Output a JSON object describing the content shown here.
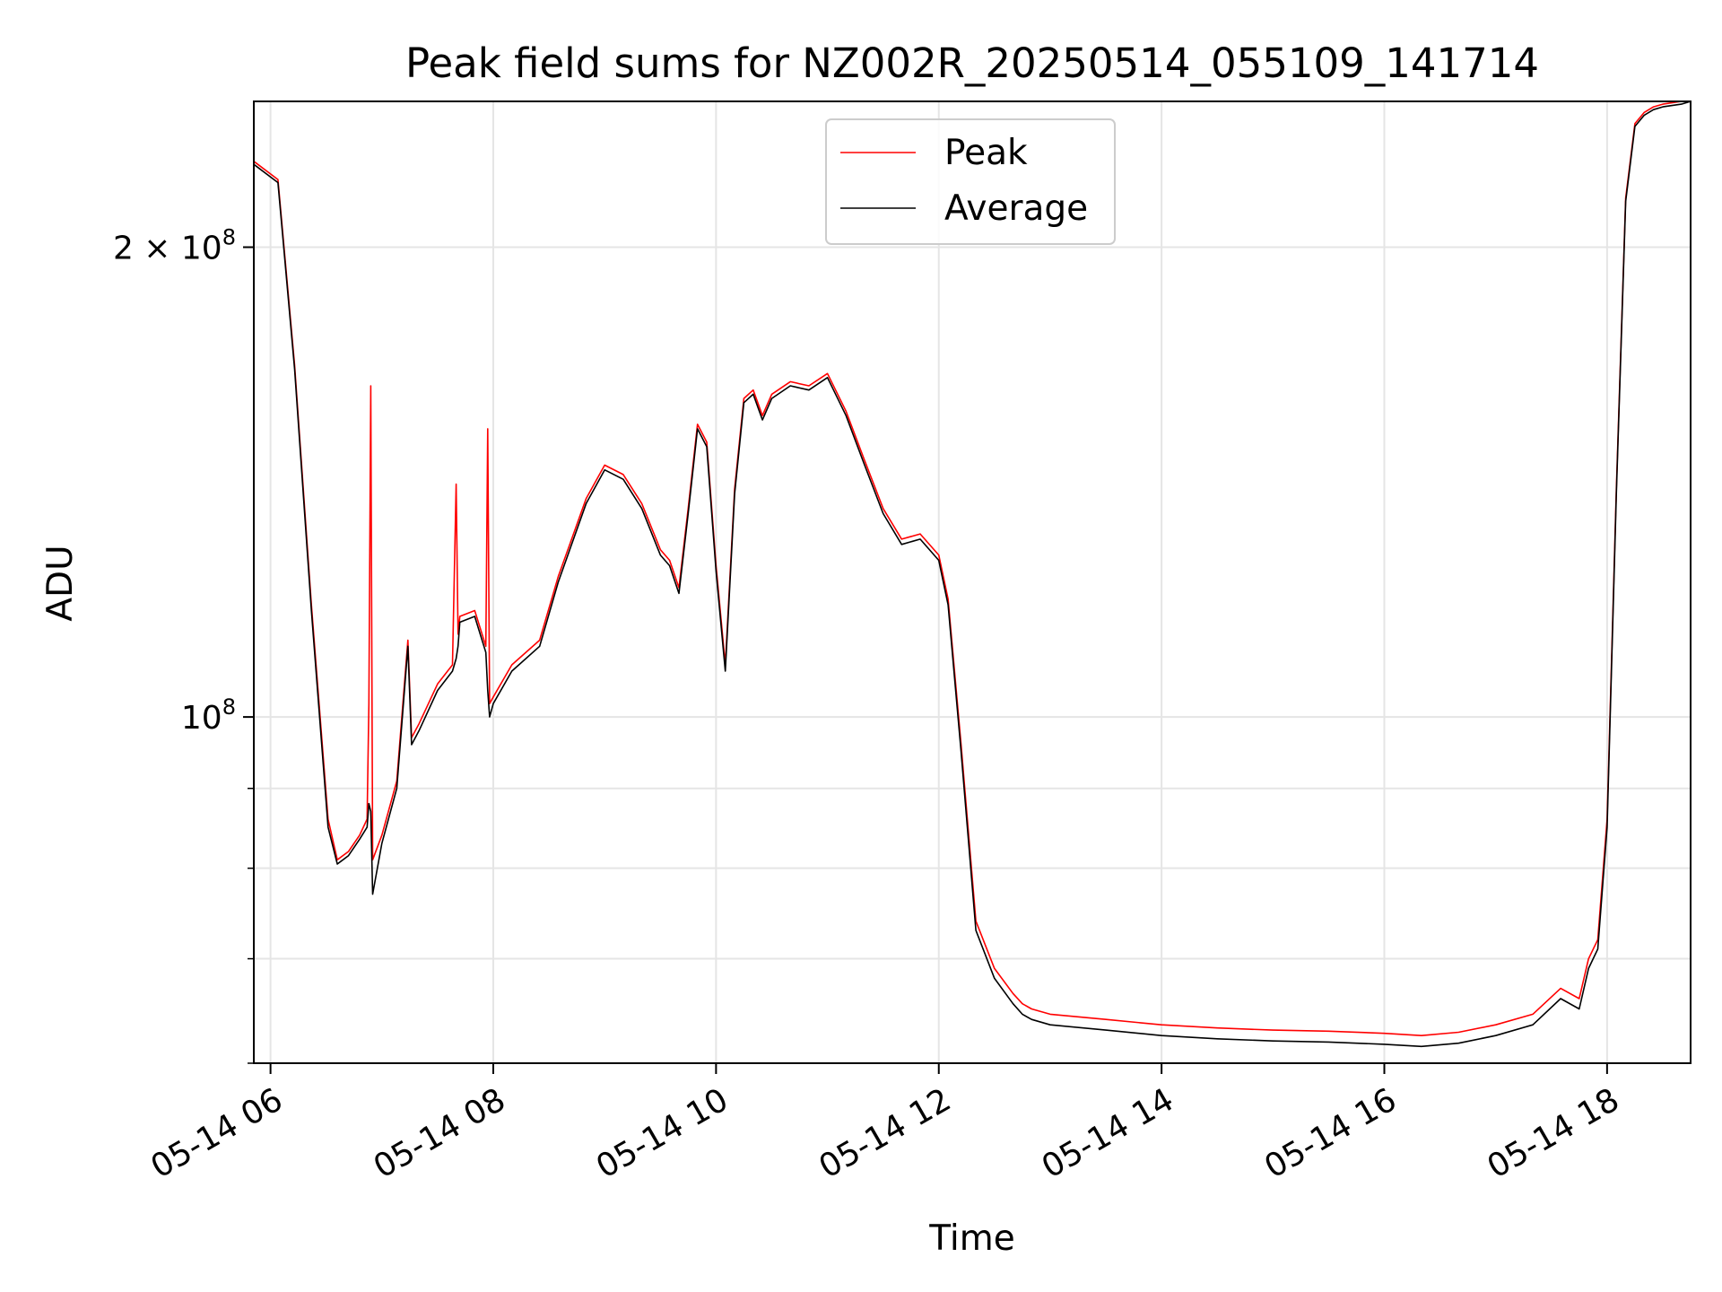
{
  "chart_data": {
    "type": "line",
    "title": "Peak field sums for NZ002R_20250514_055109_141714",
    "xlabel": "Time",
    "ylabel": "ADU",
    "yscale": "log",
    "ylim": [
      60000000,
      248000000
    ],
    "xlim": [
      "2025-05-14 05:51",
      "2025-05-14 18:45"
    ],
    "x_ticks": [
      {
        "t": "2025-05-14 06:00",
        "label": "05-14 06"
      },
      {
        "t": "2025-05-14 08:00",
        "label": "05-14 08"
      },
      {
        "t": "2025-05-14 10:00",
        "label": "05-14 10"
      },
      {
        "t": "2025-05-14 12:00",
        "label": "05-14 12"
      },
      {
        "t": "2025-05-14 14:00",
        "label": "05-14 14"
      },
      {
        "t": "2025-05-14 16:00",
        "label": "05-14 16"
      },
      {
        "t": "2025-05-14 18:00",
        "label": "05-14 18"
      }
    ],
    "y_major_ticks": [
      {
        "value": 100000000,
        "base": "10",
        "exp": "8",
        "mantissa": ""
      },
      {
        "value": 200000000,
        "base": "10",
        "exp": "8",
        "mantissa": "2 × "
      }
    ],
    "y_minor_ticks": [
      60000000,
      70000000,
      80000000,
      90000000
    ],
    "grid": true,
    "legend_position": "upper center",
    "series": [
      {
        "name": "Peak",
        "color": "#ff0000",
        "x": [
          "2025-05-14 05:51",
          "2025-05-14 06:04",
          "2025-05-14 06:13",
          "2025-05-14 06:22",
          "2025-05-14 06:31",
          "2025-05-14 06:36",
          "2025-05-14 06:42",
          "2025-05-14 06:48",
          "2025-05-14 06:52",
          "2025-05-14 06:53",
          "2025-05-14 06:54",
          "2025-05-14 06:55",
          "2025-05-14 07:00",
          "2025-05-14 07:08",
          "2025-05-14 07:14",
          "2025-05-14 07:16",
          "2025-05-14 07:20",
          "2025-05-14 07:30",
          "2025-05-14 07:38",
          "2025-05-14 07:40",
          "2025-05-14 07:41",
          "2025-05-14 07:42",
          "2025-05-14 07:50",
          "2025-05-14 07:56",
          "2025-05-14 07:57",
          "2025-05-14 07:58",
          "2025-05-14 08:00",
          "2025-05-14 08:10",
          "2025-05-14 08:25",
          "2025-05-14 08:35",
          "2025-05-14 08:50",
          "2025-05-14 09:00",
          "2025-05-14 09:10",
          "2025-05-14 09:20",
          "2025-05-14 09:30",
          "2025-05-14 09:35",
          "2025-05-14 09:40",
          "2025-05-14 09:45",
          "2025-05-14 09:50",
          "2025-05-14 09:55",
          "2025-05-14 10:00",
          "2025-05-14 10:05",
          "2025-05-14 10:10",
          "2025-05-14 10:15",
          "2025-05-14 10:20",
          "2025-05-14 10:25",
          "2025-05-14 10:30",
          "2025-05-14 10:40",
          "2025-05-14 10:50",
          "2025-05-14 11:00",
          "2025-05-14 11:10",
          "2025-05-14 11:20",
          "2025-05-14 11:30",
          "2025-05-14 11:40",
          "2025-05-14 11:50",
          "2025-05-14 12:00",
          "2025-05-14 12:05",
          "2025-05-14 12:12",
          "2025-05-14 12:20",
          "2025-05-14 12:30",
          "2025-05-14 12:40",
          "2025-05-14 12:45",
          "2025-05-14 12:50",
          "2025-05-14 13:00",
          "2025-05-14 13:30",
          "2025-05-14 14:00",
          "2025-05-14 14:30",
          "2025-05-14 15:00",
          "2025-05-14 15:30",
          "2025-05-14 16:00",
          "2025-05-14 16:20",
          "2025-05-14 16:40",
          "2025-05-14 17:00",
          "2025-05-14 17:20",
          "2025-05-14 17:35",
          "2025-05-14 17:45",
          "2025-05-14 17:50",
          "2025-05-14 17:55",
          "2025-05-14 18:00",
          "2025-05-14 18:05",
          "2025-05-14 18:10",
          "2025-05-14 18:15",
          "2025-05-14 18:20",
          "2025-05-14 18:25",
          "2025-05-14 18:30",
          "2025-05-14 18:40",
          "2025-05-14 18:45"
        ],
        "y": [
          227000000,
          221000000,
          168000000,
          118000000,
          86000000,
          81000000,
          82000000,
          84000000,
          86000000,
          102000000,
          163000000,
          81000000,
          84000000,
          91000000,
          112000000,
          97000000,
          99000000,
          105000000,
          108000000,
          141000000,
          113000000,
          116000000,
          117000000,
          111000000,
          153000000,
          102000000,
          103000000,
          108000000,
          112000000,
          123000000,
          138000000,
          145000000,
          143000000,
          137000000,
          128000000,
          126000000,
          121000000,
          136000000,
          154000000,
          150000000,
          125000000,
          108000000,
          140000000,
          160000000,
          162000000,
          156000000,
          161000000,
          164000000,
          163000000,
          166000000,
          157000000,
          146000000,
          136000000,
          130000000,
          131000000,
          127000000,
          119000000,
          96000000,
          74000000,
          69000000,
          66500000,
          65500000,
          65000000,
          64500000,
          64000000,
          63500000,
          63200000,
          63000000,
          62900000,
          62700000,
          62500000,
          62800000,
          63500000,
          64500000,
          67000000,
          66000000,
          70000000,
          72000000,
          86000000,
          140000000,
          215000000,
          240000000,
          244000000,
          246000000,
          247000000,
          248000000,
          248000000
        ]
      },
      {
        "name": "Average",
        "color": "#000000",
        "x": [
          "2025-05-14 05:51",
          "2025-05-14 06:04",
          "2025-05-14 06:13",
          "2025-05-14 06:22",
          "2025-05-14 06:31",
          "2025-05-14 06:36",
          "2025-05-14 06:42",
          "2025-05-14 06:48",
          "2025-05-14 06:52",
          "2025-05-14 06:53",
          "2025-05-14 06:54",
          "2025-05-14 06:55",
          "2025-05-14 07:00",
          "2025-05-14 07:08",
          "2025-05-14 07:14",
          "2025-05-14 07:16",
          "2025-05-14 07:20",
          "2025-05-14 07:30",
          "2025-05-14 07:38",
          "2025-05-14 07:40",
          "2025-05-14 07:41",
          "2025-05-14 07:42",
          "2025-05-14 07:50",
          "2025-05-14 07:56",
          "2025-05-14 07:57",
          "2025-05-14 07:58",
          "2025-05-14 08:00",
          "2025-05-14 08:10",
          "2025-05-14 08:25",
          "2025-05-14 08:35",
          "2025-05-14 08:50",
          "2025-05-14 09:00",
          "2025-05-14 09:10",
          "2025-05-14 09:20",
          "2025-05-14 09:30",
          "2025-05-14 09:35",
          "2025-05-14 09:40",
          "2025-05-14 09:45",
          "2025-05-14 09:50",
          "2025-05-14 09:55",
          "2025-05-14 10:00",
          "2025-05-14 10:05",
          "2025-05-14 10:10",
          "2025-05-14 10:15",
          "2025-05-14 10:20",
          "2025-05-14 10:25",
          "2025-05-14 10:30",
          "2025-05-14 10:40",
          "2025-05-14 10:50",
          "2025-05-14 11:00",
          "2025-05-14 11:10",
          "2025-05-14 11:20",
          "2025-05-14 11:30",
          "2025-05-14 11:40",
          "2025-05-14 11:50",
          "2025-05-14 12:00",
          "2025-05-14 12:05",
          "2025-05-14 12:12",
          "2025-05-14 12:20",
          "2025-05-14 12:30",
          "2025-05-14 12:40",
          "2025-05-14 12:45",
          "2025-05-14 12:50",
          "2025-05-14 13:00",
          "2025-05-14 13:30",
          "2025-05-14 14:00",
          "2025-05-14 14:30",
          "2025-05-14 15:00",
          "2025-05-14 15:30",
          "2025-05-14 16:00",
          "2025-05-14 16:20",
          "2025-05-14 16:40",
          "2025-05-14 17:00",
          "2025-05-14 17:20",
          "2025-05-14 17:35",
          "2025-05-14 17:45",
          "2025-05-14 17:50",
          "2025-05-14 17:55",
          "2025-05-14 18:00",
          "2025-05-14 18:05",
          "2025-05-14 18:10",
          "2025-05-14 18:15",
          "2025-05-14 18:20",
          "2025-05-14 18:25",
          "2025-05-14 18:30",
          "2025-05-14 18:40",
          "2025-05-14 18:45"
        ],
        "y": [
          226000000,
          220000000,
          167000000,
          117000000,
          85000000,
          80500000,
          81500000,
          83500000,
          85000000,
          88000000,
          87000000,
          77000000,
          83000000,
          90000000,
          111000000,
          96000000,
          98000000,
          104000000,
          107000000,
          109000000,
          111000000,
          115000000,
          116000000,
          110000000,
          104000000,
          100000000,
          102000000,
          107000000,
          111000000,
          122000000,
          137000000,
          144000000,
          142000000,
          136000000,
          127000000,
          125000000,
          120000000,
          135000000,
          153000000,
          149000000,
          124000000,
          107000000,
          139000000,
          159000000,
          161000000,
          155000000,
          160000000,
          163000000,
          162000000,
          165000000,
          156000000,
          145000000,
          135000000,
          129000000,
          130000000,
          126000000,
          118000000,
          95000000,
          73000000,
          68000000,
          65500000,
          64500000,
          64000000,
          63500000,
          63000000,
          62500000,
          62200000,
          62000000,
          61900000,
          61700000,
          61500000,
          61800000,
          62500000,
          63500000,
          66000000,
          65000000,
          69000000,
          71000000,
          85000000,
          139000000,
          214000000,
          239000000,
          243000000,
          245000000,
          246000000,
          247000000,
          248000000
        ]
      }
    ]
  }
}
